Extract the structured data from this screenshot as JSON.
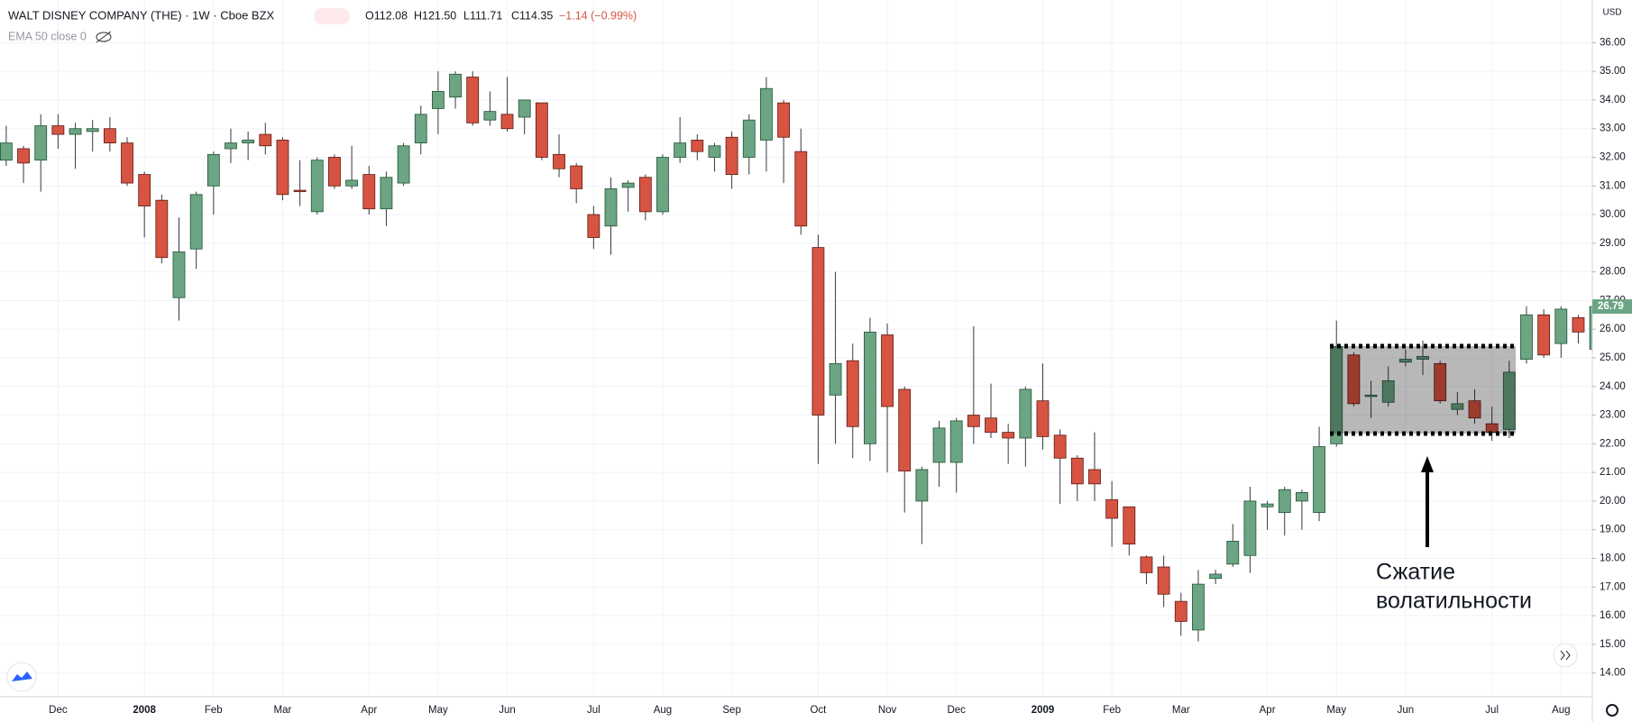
{
  "header": {
    "symbol": "WALT DISNEY COMPANY (THE) · 1W · Cboe BZX",
    "open": "O112.08",
    "high": "H121.50",
    "low": "L111.71",
    "close": "C114.35",
    "change": "−1.14 (−0.99%)",
    "indicator": "EMA 50 close 0",
    "currency": "USD"
  },
  "annotation": {
    "lines": [
      "Сжатие",
      "волатильности"
    ]
  },
  "chart_data": {
    "type": "candlestick",
    "categories": [
      null,
      null,
      null,
      "Dec",
      null,
      null,
      null,
      null,
      "2008",
      null,
      null,
      null,
      "Feb",
      null,
      null,
      null,
      "Mar",
      null,
      null,
      null,
      null,
      "Apr",
      null,
      null,
      null,
      "May",
      null,
      null,
      null,
      "Jun",
      null,
      null,
      null,
      null,
      "Jul",
      null,
      null,
      null,
      "Aug",
      null,
      null,
      null,
      "Sep",
      null,
      null,
      null,
      null,
      "Oct",
      null,
      null,
      null,
      "Nov",
      null,
      null,
      null,
      "Dec",
      null,
      null,
      null,
      null,
      "2009",
      null,
      null,
      null,
      "Feb",
      null,
      null,
      null,
      "Mar",
      null,
      null,
      null,
      null,
      "Apr",
      null,
      null,
      null,
      "May",
      null,
      null,
      null,
      "Jun",
      null,
      null,
      null,
      null,
      "Jul",
      null,
      null,
      null,
      "Aug",
      null,
      null
    ],
    "open": [
      31.9,
      32.3,
      31.9,
      33.1,
      32.8,
      32.9,
      33.0,
      32.5,
      31.4,
      30.5,
      27.1,
      28.8,
      31.0,
      32.3,
      32.5,
      32.8,
      32.6,
      30.85,
      30.1,
      32.0,
      31.0,
      31.4,
      30.2,
      31.1,
      32.5,
      33.7,
      34.1,
      34.8,
      33.3,
      33.5,
      33.4,
      33.9,
      32.1,
      31.7,
      30.0,
      29.6,
      30.95,
      31.3,
      30.1,
      32.0,
      32.6,
      32.0,
      32.7,
      32.0,
      32.6,
      33.9,
      32.2,
      28.85,
      23.7,
      24.9,
      22.0,
      25.8,
      23.9,
      20.0,
      21.35,
      21.35,
      23.0,
      22.9,
      22.4,
      22.2,
      23.5,
      22.3,
      21.5,
      21.1,
      20.05,
      19.8,
      18.05,
      17.7,
      16.5,
      15.5,
      17.3,
      17.8,
      18.1,
      19.8,
      19.6,
      20.0,
      19.6,
      22.0,
      25.1,
      23.65,
      23.45,
      24.85,
      24.95,
      24.8,
      23.2,
      23.5,
      22.7,
      22.5,
      24.95,
      26.5,
      25.5,
      26.4,
      25.3
    ],
    "high": [
      33.1,
      32.4,
      33.5,
      33.5,
      33.2,
      33.3,
      33.4,
      32.7,
      31.5,
      30.7,
      29.9,
      30.8,
      32.2,
      33.0,
      32.9,
      33.2,
      32.7,
      31.9,
      32.0,
      32.1,
      32.4,
      31.7,
      31.5,
      32.5,
      33.8,
      35.0,
      35.0,
      35.0,
      34.3,
      34.8,
      34.0,
      33.9,
      32.8,
      31.8,
      30.3,
      31.3,
      31.2,
      31.4,
      32.1,
      33.4,
      32.8,
      32.5,
      32.9,
      33.5,
      34.8,
      34.0,
      33.0,
      29.3,
      28.0,
      25.5,
      26.4,
      26.2,
      24.0,
      21.2,
      22.8,
      22.9,
      26.1,
      24.1,
      22.7,
      24.0,
      24.8,
      22.5,
      21.6,
      22.4,
      20.7,
      19.8,
      18.1,
      18.1,
      16.8,
      17.6,
      17.6,
      19.2,
      20.5,
      20.0,
      20.5,
      20.4,
      22.6,
      26.3,
      25.2,
      24.2,
      24.7,
      25.3,
      25.6,
      24.9,
      23.8,
      23.9,
      23.3,
      24.9,
      26.8,
      26.7,
      26.8,
      26.5,
      26.9
    ],
    "low": [
      31.7,
      31.1,
      30.8,
      32.3,
      31.6,
      32.2,
      32.2,
      31.0,
      29.2,
      28.3,
      26.3,
      28.1,
      30.0,
      31.8,
      31.9,
      32.1,
      30.5,
      30.3,
      30.0,
      30.9,
      30.9,
      30.0,
      29.6,
      31.0,
      32.1,
      32.8,
      33.7,
      33.1,
      33.1,
      32.9,
      32.8,
      31.9,
      31.3,
      30.4,
      28.8,
      28.6,
      30.1,
      29.8,
      30.0,
      31.8,
      31.9,
      31.5,
      30.9,
      31.4,
      31.5,
      31.1,
      29.3,
      21.3,
      22.0,
      21.5,
      21.4,
      21.0,
      19.6,
      18.5,
      20.5,
      20.3,
      22.0,
      22.2,
      21.3,
      21.2,
      21.8,
      19.9,
      20.0,
      20.0,
      18.4,
      18.1,
      17.1,
      16.3,
      15.3,
      15.1,
      17.1,
      17.7,
      17.5,
      19.0,
      18.8,
      19.0,
      19.3,
      21.9,
      23.3,
      22.9,
      23.3,
      24.7,
      24.4,
      23.4,
      23.0,
      22.7,
      22.1,
      22.2,
      24.8,
      25.0,
      25.0,
      25.5,
      25.2
    ],
    "close": [
      32.5,
      31.8,
      33.1,
      32.8,
      33.0,
      33.0,
      32.5,
      31.1,
      30.3,
      28.5,
      28.7,
      30.7,
      32.1,
      32.5,
      32.6,
      32.4,
      30.7,
      30.8,
      31.9,
      31.0,
      31.2,
      30.2,
      31.3,
      32.4,
      33.5,
      34.3,
      34.9,
      33.2,
      33.6,
      33.0,
      34.0,
      32.0,
      31.6,
      30.9,
      29.2,
      30.9,
      31.1,
      30.1,
      32.0,
      32.5,
      32.2,
      32.4,
      31.4,
      33.3,
      34.4,
      32.7,
      29.6,
      23.0,
      24.8,
      22.6,
      25.9,
      23.3,
      21.05,
      21.1,
      22.55,
      22.8,
      22.6,
      22.4,
      22.2,
      23.9,
      22.25,
      21.5,
      20.6,
      20.6,
      19.4,
      18.5,
      17.5,
      16.75,
      15.8,
      17.1,
      17.45,
      18.6,
      20.0,
      19.9,
      20.4,
      20.3,
      21.9,
      25.4,
      23.4,
      23.7,
      24.2,
      24.95,
      25.05,
      23.5,
      23.4,
      22.9,
      22.4,
      24.5,
      26.5,
      25.1,
      26.7,
      25.9,
      26.79
    ],
    "up_color": "#6ba583",
    "down_color": "#d75442",
    "ylim": [
      13.17,
      37.49
    ],
    "yticks": [
      {
        "value": 14,
        "label": "14.00"
      },
      {
        "value": 15,
        "label": "15.00"
      },
      {
        "value": 16,
        "label": "16.00"
      },
      {
        "value": 17,
        "label": "17.00"
      },
      {
        "value": 18,
        "label": "18.00"
      },
      {
        "value": 19,
        "label": "19.00"
      },
      {
        "value": 20,
        "label": "20.00"
      },
      {
        "value": 21,
        "label": "21.00"
      },
      {
        "value": 22,
        "label": "22.00"
      },
      {
        "value": 23,
        "label": "23.00"
      },
      {
        "value": 24,
        "label": "24.00"
      },
      {
        "value": 25,
        "label": "25.00"
      },
      {
        "value": 26,
        "label": "26.00"
      },
      {
        "value": 27,
        "label": "27.00"
      },
      {
        "value": 28,
        "label": "28.00"
      },
      {
        "value": 29,
        "label": "29.00"
      },
      {
        "value": 30,
        "label": "30.00"
      },
      {
        "value": 31,
        "label": "31.00"
      },
      {
        "value": 32,
        "label": "32.00"
      },
      {
        "value": 33,
        "label": "33.00"
      },
      {
        "value": 34,
        "label": "34.00"
      },
      {
        "value": 35,
        "label": "35.00"
      },
      {
        "value": 36,
        "label": "36.00"
      }
    ],
    "grid": true
  }
}
